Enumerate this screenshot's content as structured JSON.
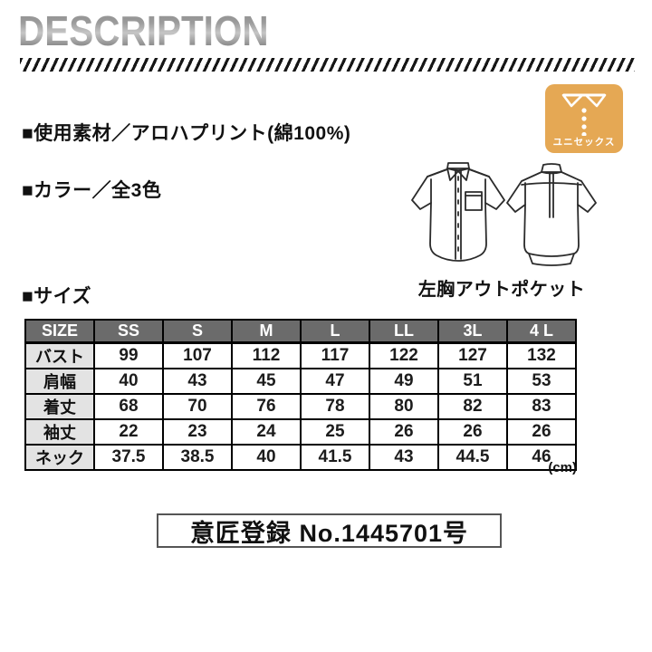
{
  "page_title": "DESCRIPTION",
  "unisex_badge": {
    "label": "ユニセックス",
    "bg_color": "#E5A854",
    "icon": "shirt-collar-buttons-icon"
  },
  "specs": {
    "material": "■使用素材／アロハプリント(綿100%)",
    "color": "■カラー／全3色",
    "size_heading": "■サイズ"
  },
  "illustration": {
    "caption": "左胸アウトポケット",
    "views": [
      "front-shirt",
      "back-shirt"
    ]
  },
  "size_table": {
    "columns": [
      "SIZE",
      "SS",
      "S",
      "M",
      "L",
      "LL",
      "3L",
      "4 L"
    ],
    "rows": [
      {
        "label": "バスト",
        "values": [
          "99",
          "107",
          "112",
          "117",
          "122",
          "127",
          "132"
        ]
      },
      {
        "label": "肩幅",
        "values": [
          "40",
          "43",
          "45",
          "47",
          "49",
          "51",
          "53"
        ]
      },
      {
        "label": "着丈",
        "values": [
          "68",
          "70",
          "76",
          "78",
          "80",
          "82",
          "83"
        ]
      },
      {
        "label": "袖丈",
        "values": [
          "22",
          "23",
          "24",
          "25",
          "26",
          "26",
          "26"
        ]
      },
      {
        "label": "ネック",
        "values": [
          "37.5",
          "38.5",
          "40",
          "41.5",
          "43",
          "44.5",
          "46"
        ]
      }
    ],
    "unit_note": "(cm)",
    "header_bg": "#6B6B6B",
    "label_col_bg": "#E3E3E3"
  },
  "registration": {
    "text": "意匠登録 No.1445701号"
  }
}
